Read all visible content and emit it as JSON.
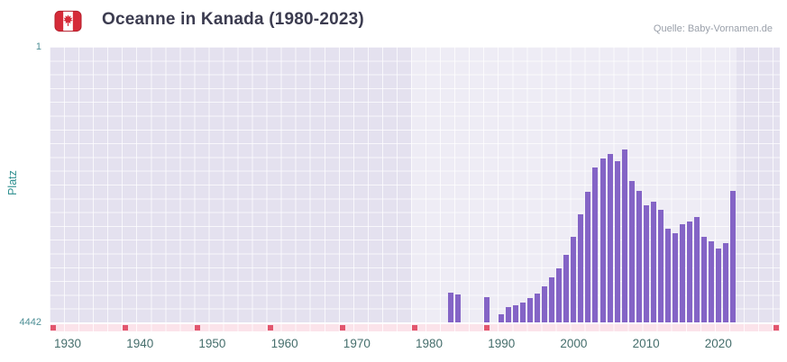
{
  "header": {
    "title": "Oceanne in Kanada (1980-2023)",
    "source": "Quelle: Baby-Vornamen.de",
    "flag_icon": "canada-flag-icon"
  },
  "chart_data": {
    "type": "bar",
    "title": "Oceanne in Kanada (1980-2023)",
    "xlabel": "",
    "ylabel": "Platz",
    "legend": "none",
    "grid": "on",
    "y_axis": {
      "min": 1,
      "max": 4442,
      "inverted": true,
      "top_label": "1",
      "bottom_label": "4442"
    },
    "x_axis": {
      "min": 1928,
      "max": 2029,
      "ticks": [
        1930,
        1940,
        1950,
        1960,
        1970,
        1980,
        1990,
        2000,
        2010,
        2020
      ]
    },
    "highlight_range": [
      1978,
      2023
    ],
    "missing_marker_years": [
      1928,
      1938,
      1948,
      1958,
      1968,
      1978,
      1988,
      2028
    ],
    "points": [
      {
        "year": 1983,
        "rank": 3960
      },
      {
        "year": 1984,
        "rank": 3990
      },
      {
        "year": 1988,
        "rank": 4030
      },
      {
        "year": 1990,
        "rank": 4310
      },
      {
        "year": 1991,
        "rank": 4200
      },
      {
        "year": 1992,
        "rank": 4170
      },
      {
        "year": 1993,
        "rank": 4120
      },
      {
        "year": 1994,
        "rank": 4050
      },
      {
        "year": 1995,
        "rank": 3980
      },
      {
        "year": 1996,
        "rank": 3860
      },
      {
        "year": 1997,
        "rank": 3720
      },
      {
        "year": 1998,
        "rank": 3570
      },
      {
        "year": 1999,
        "rank": 3350
      },
      {
        "year": 2000,
        "rank": 3060
      },
      {
        "year": 2001,
        "rank": 2700
      },
      {
        "year": 2002,
        "rank": 2340
      },
      {
        "year": 2003,
        "rank": 1950
      },
      {
        "year": 2004,
        "rank": 1800
      },
      {
        "year": 2005,
        "rank": 1730
      },
      {
        "year": 2006,
        "rank": 1840
      },
      {
        "year": 2007,
        "rank": 1660
      },
      {
        "year": 2008,
        "rank": 2160
      },
      {
        "year": 2009,
        "rank": 2320
      },
      {
        "year": 2010,
        "rank": 2560
      },
      {
        "year": 2011,
        "rank": 2500
      },
      {
        "year": 2012,
        "rank": 2630
      },
      {
        "year": 2013,
        "rank": 2930
      },
      {
        "year": 2014,
        "rank": 3010
      },
      {
        "year": 2015,
        "rank": 2860
      },
      {
        "year": 2016,
        "rank": 2820
      },
      {
        "year": 2017,
        "rank": 2740
      },
      {
        "year": 2018,
        "rank": 3060
      },
      {
        "year": 2019,
        "rank": 3140
      },
      {
        "year": 2020,
        "rank": 3250
      },
      {
        "year": 2021,
        "rank": 3160
      },
      {
        "year": 2022,
        "rank": 2320
      }
    ],
    "colors": {
      "bar": "#8464c6",
      "plot_bg": "#e4e1ef",
      "grid": "#ffffff",
      "band": "rgba(255,255,255,0.38)",
      "strip_bg": "#fbe3ea",
      "marker": "#e2566e",
      "title": "#3c3c50",
      "source": "#9aa0aa",
      "axis_title": "#2e8f8f",
      "y_tick": "#4e8f96",
      "x_tick": "#456e6c"
    }
  }
}
